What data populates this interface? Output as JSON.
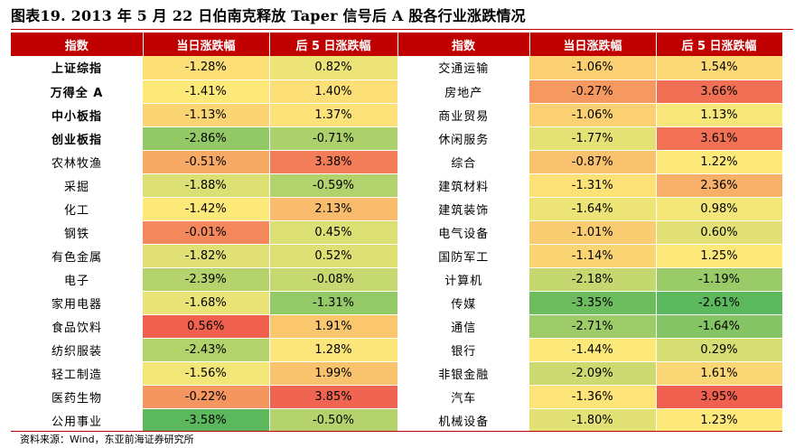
{
  "title": "图表19. 2013 年 5 月 22 日伯南克释放 Taper 信号后 A 股各行业涨跌情况",
  "source": "资料来源：Wind，东亚前海证券研究所",
  "colors": {
    "header": "#c00000",
    "scale_low": "#5cb85c",
    "scale_mid": "#fde97a",
    "scale_high": "#f0604f"
  },
  "headers": [
    "指数",
    "当日涨跌幅",
    "后 5 日涨跌幅",
    "指数",
    "当日涨跌幅",
    "后 5 日涨跌幅"
  ],
  "left_rows": [
    {
      "name": "上证综指",
      "day": "-1.28%",
      "after5": "0.82%",
      "bold": true
    },
    {
      "name": "万得全 A",
      "day": "-1.41%",
      "after5": "1.40%",
      "bold": true
    },
    {
      "name": "中小板指",
      "day": "-1.13%",
      "after5": "1.37%",
      "bold": true
    },
    {
      "name": "创业板指",
      "day": "-2.86%",
      "after5": "-0.71%",
      "bold": true
    },
    {
      "name": "农林牧渔",
      "day": "-0.51%",
      "after5": "3.38%"
    },
    {
      "name": "采掘",
      "day": "-1.88%",
      "after5": "-0.59%"
    },
    {
      "name": "化工",
      "day": "-1.42%",
      "after5": "2.13%"
    },
    {
      "name": "钢铁",
      "day": "-0.01%",
      "after5": "0.45%"
    },
    {
      "name": "有色金属",
      "day": "-1.82%",
      "after5": "0.52%"
    },
    {
      "name": "电子",
      "day": "-2.39%",
      "after5": "-0.08%"
    },
    {
      "name": "家用电器",
      "day": "-1.68%",
      "after5": "-1.31%"
    },
    {
      "name": "食品饮料",
      "day": "0.56%",
      "after5": "1.91%"
    },
    {
      "name": "纺织服装",
      "day": "-2.43%",
      "after5": "1.28%"
    },
    {
      "name": "轻工制造",
      "day": "-1.56%",
      "after5": "1.99%"
    },
    {
      "name": "医药生物",
      "day": "-0.22%",
      "after5": "3.85%"
    },
    {
      "name": "公用事业",
      "day": "-3.58%",
      "after5": "-0.50%"
    }
  ],
  "right_rows": [
    {
      "name": "交通运输",
      "day": "-1.06%",
      "after5": "1.54%"
    },
    {
      "name": "房地产",
      "day": "-0.27%",
      "after5": "3.66%"
    },
    {
      "name": "商业贸易",
      "day": "-1.06%",
      "after5": "1.13%"
    },
    {
      "name": "休闲服务",
      "day": "-1.77%",
      "after5": "3.61%"
    },
    {
      "name": "综合",
      "day": "-0.87%",
      "after5": "1.22%"
    },
    {
      "name": "建筑材料",
      "day": "-1.31%",
      "after5": "2.36%"
    },
    {
      "name": "建筑装饰",
      "day": "-1.64%",
      "after5": "0.98%"
    },
    {
      "name": "电气设备",
      "day": "-1.01%",
      "after5": "0.60%"
    },
    {
      "name": "国防军工",
      "day": "-1.14%",
      "after5": "1.25%"
    },
    {
      "name": "计算机",
      "day": "-2.18%",
      "after5": "-1.19%"
    },
    {
      "name": "传媒",
      "day": "-3.35%",
      "after5": "-2.61%"
    },
    {
      "name": "通信",
      "day": "-2.71%",
      "after5": "-1.64%"
    },
    {
      "name": "银行",
      "day": "-1.44%",
      "after5": "0.29%"
    },
    {
      "name": "非银金融",
      "day": "-2.09%",
      "after5": "1.61%"
    },
    {
      "name": "汽车",
      "day": "-1.36%",
      "after5": "3.95%"
    },
    {
      "name": "机械设备",
      "day": "-1.80%",
      "after5": "1.23%"
    }
  ]
}
